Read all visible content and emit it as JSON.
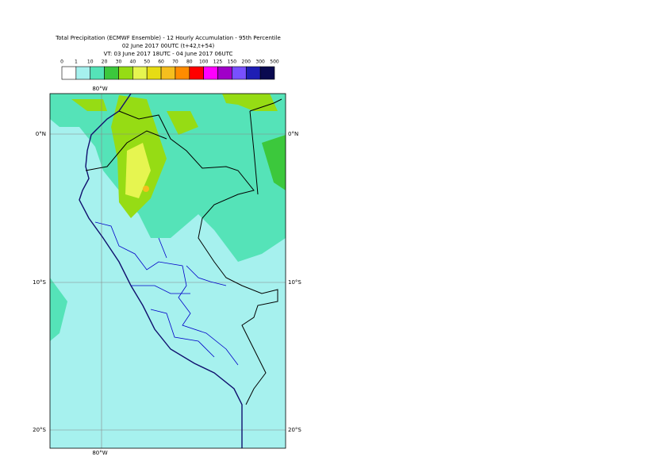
{
  "header": {
    "lines": [
      "Total Precipitation (ECMWF Ensemble) - 12 Hourly Accumulation - 95th Percentile",
      "02 June 2017 00UTC (t+42,t+54)",
      "VT: 03 June 2017 18UTC - 04 June 2017 06UTC"
    ]
  },
  "legend": {
    "labels": [
      "0",
      "1",
      "10",
      "20",
      "30",
      "40",
      "50",
      "60",
      "70",
      "80",
      "100",
      "125",
      "150",
      "200",
      "300",
      "500"
    ],
    "colors": [
      "#ffffff",
      "#a6f1ee",
      "#55e3b8",
      "#3cc83c",
      "#96dc14",
      "#e6f550",
      "#e6dc14",
      "#f5be1e",
      "#ff8c00",
      "#ff0000",
      "#ff00ff",
      "#a000c8",
      "#7850ff",
      "#1e1eb4",
      "#0a0a50"
    ]
  },
  "map": {
    "lon_labels": [
      "80°W"
    ],
    "lat_labels": [
      "0°N",
      "10°S",
      "20°S"
    ]
  }
}
